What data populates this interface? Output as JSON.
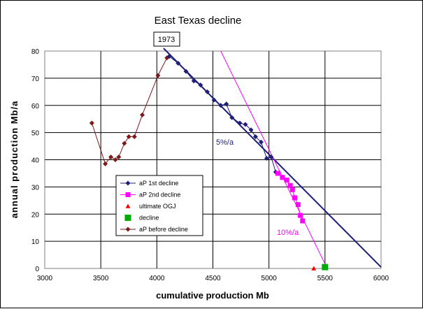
{
  "chart_data": {
    "type": "scatter",
    "title": "East Texas decline",
    "xlabel": "cumulative production Mb",
    "ylabel": "annual production Mb/a",
    "xlim": [
      3000,
      6000
    ],
    "ylim": [
      0,
      80
    ],
    "xticks": [
      3000,
      3500,
      4000,
      4500,
      5000,
      5500,
      6000
    ],
    "yticks": [
      0,
      10,
      20,
      30,
      40,
      50,
      60,
      70,
      80
    ],
    "grid": true,
    "legend_position": "lower-left",
    "series": [
      {
        "name": "aP 1st decline",
        "color": "#1f1f7a",
        "marker": "diamond",
        "line": true,
        "points": [
          [
            4110,
            78
          ],
          [
            4190,
            75.5
          ],
          [
            4260,
            72.5
          ],
          [
            4330,
            69
          ],
          [
            4390,
            67.5
          ],
          [
            4450,
            65
          ],
          [
            4510,
            62
          ],
          [
            4570,
            60
          ],
          [
            4620,
            60.5
          ],
          [
            4670,
            55.5
          ],
          [
            4740,
            53.5
          ],
          [
            4790,
            53
          ],
          [
            4840,
            51
          ],
          [
            4880,
            48.5
          ],
          [
            4930,
            46.5
          ],
          [
            4980,
            40.5
          ],
          [
            5020,
            41
          ],
          [
            5060,
            35.5
          ]
        ]
      },
      {
        "name": "aP 2nd decline",
        "color": "#ff00ff",
        "marker": "square",
        "line": true,
        "points": [
          [
            5080,
            35
          ],
          [
            5120,
            33.5
          ],
          [
            5160,
            32.5
          ],
          [
            5190,
            30.5
          ],
          [
            5210,
            29
          ],
          [
            5230,
            26
          ],
          [
            5260,
            23.5
          ],
          [
            5280,
            19.5
          ],
          [
            5300,
            17.5
          ]
        ]
      },
      {
        "name": "ultimate OGJ",
        "color": "#ff0000",
        "marker": "triangle",
        "line": false,
        "points": [
          [
            5400,
            0
          ]
        ]
      },
      {
        "name": "decline",
        "color": "#00aa00",
        "marker": "square",
        "line": false,
        "points": [
          [
            5500,
            0.5
          ]
        ]
      },
      {
        "name": "aP before decline",
        "color": "#7a1a1a",
        "marker": "diamond",
        "line": true,
        "points": [
          [
            3420,
            53.5
          ],
          [
            3540,
            38.5
          ],
          [
            3590,
            41
          ],
          [
            3630,
            40
          ],
          [
            3660,
            41
          ],
          [
            3710,
            46
          ],
          [
            3750,
            48.5
          ],
          [
            3800,
            48.5
          ],
          [
            3870,
            56.5
          ],
          [
            4010,
            71
          ],
          [
            4090,
            77.5
          ]
        ]
      }
    ],
    "trendlines": [
      {
        "label": "5%/a",
        "color": "#1f1f7a",
        "from": [
          4060,
          81
        ],
        "to": [
          6000,
          0.5
        ]
      },
      {
        "label": "10%/a",
        "color": "#ff00ff",
        "from": [
          4570,
          80
        ],
        "to": [
          5520,
          0
        ]
      }
    ],
    "annotations": [
      {
        "text": "1973"
      },
      {
        "text": "5%/a",
        "color": "#1f1f7a"
      },
      {
        "text": "10%/a",
        "color": "#ff00ff"
      }
    ]
  }
}
